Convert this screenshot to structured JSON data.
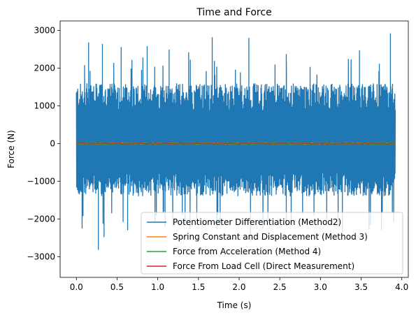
{
  "chart_data": {
    "type": "line",
    "title": "Time and Force",
    "xlabel": "Time (s)",
    "ylabel": "Force (N)",
    "xlim": [
      -0.2,
      4.08
    ],
    "ylim": [
      -3550,
      3250
    ],
    "xticks": [
      0.0,
      0.5,
      1.0,
      1.5,
      2.0,
      2.5,
      3.0,
      3.5,
      4.0
    ],
    "xtick_labels": [
      "0.0",
      "0.5",
      "1.0",
      "1.5",
      "2.0",
      "2.5",
      "3.0",
      "3.5",
      "4.0"
    ],
    "yticks": [
      -3000,
      -2000,
      -1000,
      0,
      1000,
      2000,
      3000
    ],
    "ytick_labels": [
      "−3000",
      "−2000",
      "−1000",
      "0",
      "1000",
      "2000",
      "3000"
    ],
    "grid": false,
    "legend_position": "lower-right",
    "series": [
      {
        "name": "Potentiometer Differentiation (Method2)",
        "color": "#1f77b4",
        "x_range": [
          0.0,
          3.92
        ],
        "typical_range": [
          -1400,
          1600
        ],
        "peaks": [
          {
            "x": 0.15,
            "y": 2680
          },
          {
            "x": 0.32,
            "y": 2640
          },
          {
            "x": 0.55,
            "y": 2560
          },
          {
            "x": 0.87,
            "y": 2580
          },
          {
            "x": 1.14,
            "y": 2490
          },
          {
            "x": 1.38,
            "y": 2420
          },
          {
            "x": 1.67,
            "y": 2820
          },
          {
            "x": 2.12,
            "y": 2800
          },
          {
            "x": 2.58,
            "y": 2370
          },
          {
            "x": 3.48,
            "y": 2470
          },
          {
            "x": 3.86,
            "y": 2920
          }
        ],
        "troughs": [
          {
            "x": 0.07,
            "y": -2250
          },
          {
            "x": 0.27,
            "y": -2820
          },
          {
            "x": 0.34,
            "y": -2480
          },
          {
            "x": 0.63,
            "y": -2300
          },
          {
            "x": 1.09,
            "y": -2200
          },
          {
            "x": 1.48,
            "y": -2150
          },
          {
            "x": 2.14,
            "y": -2590
          },
          {
            "x": 2.58,
            "y": -2200
          },
          {
            "x": 3.27,
            "y": -2350
          },
          {
            "x": 3.75,
            "y": -2300
          }
        ]
      },
      {
        "name": "Spring Constant and Displacement (Method 3)",
        "color": "#ff7f0e",
        "x_range": [
          0.0,
          3.92
        ],
        "amplitude": 15
      },
      {
        "name": "Force from Acceleration (Method 4)",
        "color": "#2ca02c",
        "x_range": [
          0.0,
          3.92
        ],
        "amplitude": 30
      },
      {
        "name": "Force From Load Cell (Direct Measurement)",
        "color": "#d62728",
        "x_range": [
          0.0,
          3.92
        ],
        "amplitude": 10
      }
    ]
  }
}
